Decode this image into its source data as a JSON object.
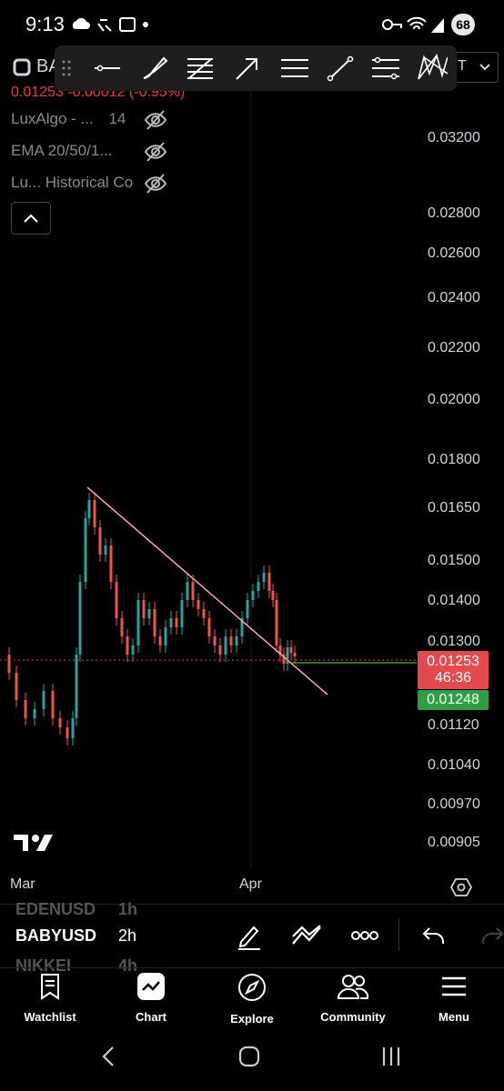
{
  "status_bar": {
    "time": "9:13",
    "battery": "68"
  },
  "header": {
    "symbol": "BA",
    "price": "0.01253",
    "change": "-0.00012 (-0.95%)",
    "interval_button": "T",
    "indicators": [
      {
        "label": "LuxAlgo - ...",
        "extra": "14"
      },
      {
        "label": "EMA 20/50/1...",
        "extra": ""
      },
      {
        "label": "Lu... Historical Co",
        "extra": ""
      }
    ]
  },
  "toolbar": {
    "tools": [
      "horizontal-line-icon",
      "brush-icon",
      "fib-retracement-icon",
      "arrow-icon",
      "parallel-lines-icon",
      "trend-line-icon",
      "fib-extension-icon",
      "pattern-icon"
    ]
  },
  "chart_data": {
    "type": "line",
    "title": "",
    "x": [
      "Mar",
      "Apr"
    ],
    "y_axis_ticks": [
      "0.03200",
      "0.02800",
      "0.02600",
      "0.02400",
      "0.02200",
      "0.02000",
      "0.01800",
      "0.01650",
      "0.01500",
      "0.01400",
      "0.01300",
      "0.01120",
      "0.01040",
      "0.00970",
      "0.00905"
    ],
    "current_price": "0.01253",
    "countdown": "46:36",
    "bid_price": "0.01248",
    "x_labels": [
      "Mar",
      "Apr"
    ],
    "trendline": {
      "from": 0.0169,
      "to": 0.0116
    }
  },
  "bottom": {
    "watch_prev": "EDENUSD",
    "watch_prev_tf": "1h",
    "current_symbol": "BABYUSD",
    "current_tf": "2h",
    "watch_next": "NIKKEI",
    "watch_next_tf": "4h"
  },
  "nav": [
    {
      "label": "Watchlist"
    },
    {
      "label": "Chart"
    },
    {
      "label": "Explore"
    },
    {
      "label": "Community"
    },
    {
      "label": "Menu"
    }
  ]
}
